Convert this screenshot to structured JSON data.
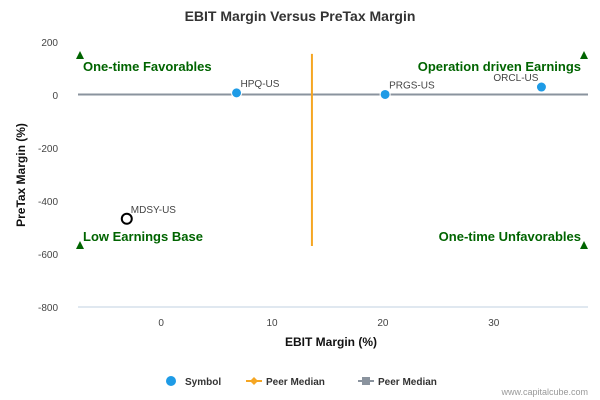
{
  "chart_data": {
    "type": "scatter",
    "title": "EBIT Margin Versus PreTax Margin",
    "xlabel": "EBIT Margin (%)",
    "ylabel": "PreTax Margin (%)",
    "xlim": [
      -7.5,
      38.5
    ],
    "ylim": [
      -800,
      200
    ],
    "xticks": [
      0,
      10,
      20,
      30
    ],
    "yticks": [
      200,
      0,
      -200,
      -400,
      -600,
      -800
    ],
    "grid": false,
    "points": [
      {
        "label": "HPQ-US",
        "x": 6.8,
        "y": 8,
        "style": "filled"
      },
      {
        "label": "PRGS-US",
        "x": 20.2,
        "y": 2,
        "style": "filled"
      },
      {
        "label": "ORCL-US",
        "x": 34.3,
        "y": 30,
        "style": "filled"
      },
      {
        "label": "MDSY-US",
        "x": -3.1,
        "y": -467,
        "style": "hollow"
      }
    ],
    "peer_median_x": 13.6,
    "peer_median_x_span": [
      -570,
      155
    ],
    "peer_median_y": 2,
    "quadrant_labels": {
      "top_left": "One-time Favorables",
      "top_right": "Operation driven Earnings",
      "bottom_left": "Low Earnings Base",
      "bottom_right": "One-time Unfavorables"
    },
    "legend": [
      {
        "label": "Symbol",
        "kind": "symbol"
      },
      {
        "label": "Peer Median",
        "kind": "vertical"
      },
      {
        "label": "Peer Median",
        "kind": "horizontal"
      }
    ],
    "legend_position": "bottom-center",
    "colors": {
      "point": "#1e9be6",
      "vertical_median": "#f5a623",
      "horizontal_median": "#8a939e",
      "quadrant_text": "#006400"
    }
  },
  "credit": "www.capitalcube.com"
}
